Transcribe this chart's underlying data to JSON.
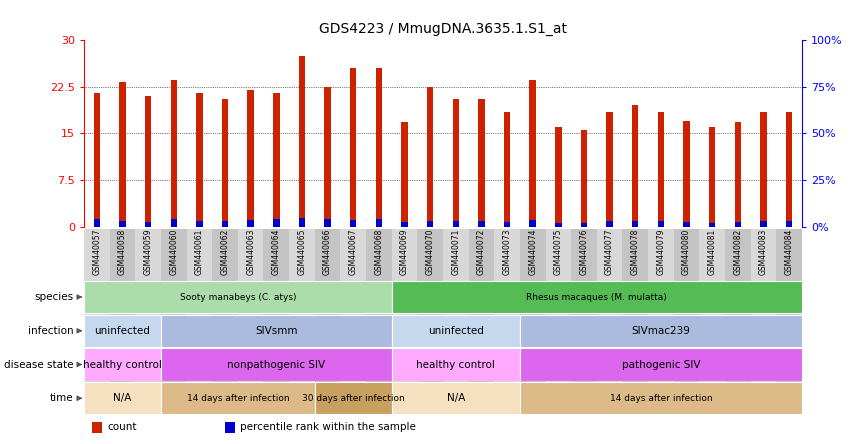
{
  "title": "GDS4223 / MmugDNA.3635.1.S1_at",
  "samples": [
    "GSM440057",
    "GSM440058",
    "GSM440059",
    "GSM440060",
    "GSM440061",
    "GSM440062",
    "GSM440063",
    "GSM440064",
    "GSM440065",
    "GSM440066",
    "GSM440067",
    "GSM440068",
    "GSM440069",
    "GSM440070",
    "GSM440071",
    "GSM440072",
    "GSM440073",
    "GSM440074",
    "GSM440075",
    "GSM440076",
    "GSM440077",
    "GSM440078",
    "GSM440079",
    "GSM440080",
    "GSM440081",
    "GSM440082",
    "GSM440083",
    "GSM440084"
  ],
  "red_values": [
    21.5,
    23.2,
    21.0,
    23.5,
    21.5,
    20.5,
    22.0,
    21.5,
    27.5,
    22.5,
    25.5,
    25.5,
    16.8,
    22.5,
    20.5,
    20.5,
    18.5,
    23.5,
    16.0,
    15.5,
    18.5,
    19.5,
    18.5,
    17.0,
    16.0,
    16.8,
    18.5,
    18.5
  ],
  "blue_values": [
    1.2,
    1.0,
    0.8,
    1.2,
    1.0,
    0.9,
    1.1,
    1.3,
    1.5,
    1.2,
    1.1,
    1.2,
    0.8,
    1.0,
    0.9,
    1.0,
    0.8,
    1.1,
    0.7,
    0.7,
    1.0,
    1.0,
    0.9,
    0.8,
    0.7,
    0.8,
    0.9,
    0.9
  ],
  "ylim_left": [
    0,
    30
  ],
  "ylim_right": [
    0,
    100
  ],
  "yticks_left": [
    0,
    7.5,
    15,
    22.5,
    30
  ],
  "yticks_right": [
    0,
    25,
    50,
    75,
    100
  ],
  "ytick_labels_right": [
    "0%",
    "25%",
    "50%",
    "75%",
    "100%"
  ],
  "bar_color_red": "#CC2200",
  "bar_color_blue": "#0000CC",
  "bar_width": 0.25,
  "annotation_rows": [
    {
      "label": "species",
      "segments": [
        {
          "text": "Sooty manabeys (C. atys)",
          "start": 0,
          "end": 12,
          "color": "#AADDAA"
        },
        {
          "text": "Rhesus macaques (M. mulatta)",
          "start": 12,
          "end": 28,
          "color": "#55BB55"
        }
      ]
    },
    {
      "label": "infection",
      "segments": [
        {
          "text": "uninfected",
          "start": 0,
          "end": 3,
          "color": "#C5D8EE"
        },
        {
          "text": "SIVsmm",
          "start": 3,
          "end": 12,
          "color": "#AABBDD"
        },
        {
          "text": "uninfected",
          "start": 12,
          "end": 17,
          "color": "#C5D8EE"
        },
        {
          "text": "SIVmac239",
          "start": 17,
          "end": 28,
          "color": "#AABBDD"
        }
      ]
    },
    {
      "label": "disease state",
      "segments": [
        {
          "text": "healthy control",
          "start": 0,
          "end": 3,
          "color": "#FFAAFF"
        },
        {
          "text": "nonpathogenic SIV",
          "start": 3,
          "end": 12,
          "color": "#DD66EE"
        },
        {
          "text": "healthy control",
          "start": 12,
          "end": 17,
          "color": "#FFAAFF"
        },
        {
          "text": "pathogenic SIV",
          "start": 17,
          "end": 28,
          "color": "#DD66EE"
        }
      ]
    },
    {
      "label": "time",
      "segments": [
        {
          "text": "N/A",
          "start": 0,
          "end": 3,
          "color": "#F5E0C0"
        },
        {
          "text": "14 days after infection",
          "start": 3,
          "end": 9,
          "color": "#DDBB88"
        },
        {
          "text": "30 days after infection",
          "start": 9,
          "end": 12,
          "color": "#C8A060"
        },
        {
          "text": "N/A",
          "start": 12,
          "end": 17,
          "color": "#F5E0C0"
        },
        {
          "text": "14 days after infection",
          "start": 17,
          "end": 28,
          "color": "#DDBB88"
        }
      ]
    }
  ],
  "legend_items": [
    {
      "label": "count",
      "color": "#CC2200"
    },
    {
      "label": "percentile rank within the sample",
      "color": "#0000CC"
    }
  ],
  "xtick_bg_even": "#D8D8D8",
  "xtick_bg_odd": "#C4C4C4",
  "fig_width": 8.66,
  "fig_height": 4.44,
  "dpi": 100
}
